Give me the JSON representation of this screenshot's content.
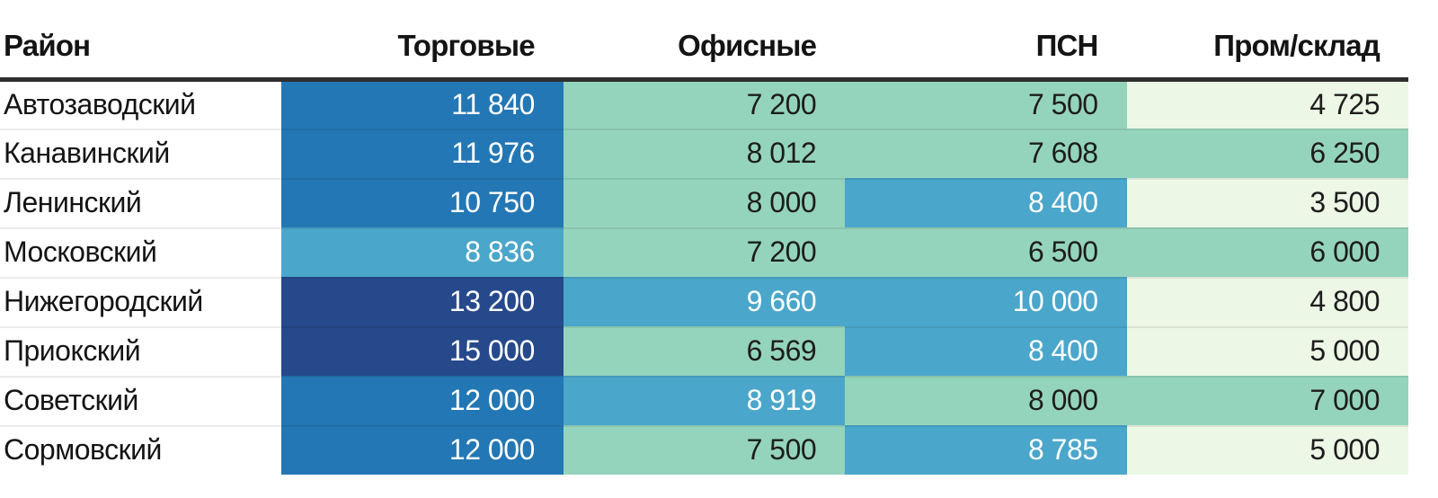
{
  "chart_data": {
    "type": "heatmap",
    "title": "",
    "rule_color": "#2e2e2e",
    "columns": [
      "Район",
      "Торговые",
      "Офисные",
      "ПСН",
      "Пром/склад"
    ],
    "palette": [
      {
        "bg": "#EDF7E6",
        "text": "#1D1D1D"
      },
      {
        "bg": "#95D4BC",
        "text": "#1D1D1D"
      },
      {
        "bg": "#4AA6CA",
        "text": "#FFFFFF"
      },
      {
        "bg": "#2377B4",
        "text": "#FFFFFF"
      },
      {
        "bg": "#26498C",
        "text": "#FFFFFF"
      }
    ],
    "rows": [
      {
        "district": "Автозаводский",
        "values": [
          11840,
          7200,
          7500,
          4725
        ],
        "values_display": [
          "11 840",
          "7 200",
          "7 500",
          "4 725"
        ],
        "levels": [
          3,
          1,
          1,
          0
        ]
      },
      {
        "district": "Канавинский",
        "values": [
          11976,
          8012,
          7608,
          6250
        ],
        "values_display": [
          "11 976",
          "8 012",
          "7 608",
          "6 250"
        ],
        "levels": [
          3,
          1,
          1,
          1
        ]
      },
      {
        "district": "Ленинский",
        "values": [
          10750,
          8000,
          8400,
          3500
        ],
        "values_display": [
          "10 750",
          "8 000",
          "8 400",
          "3 500"
        ],
        "levels": [
          3,
          1,
          2,
          0
        ]
      },
      {
        "district": "Московский",
        "values": [
          8836,
          7200,
          6500,
          6000
        ],
        "values_display": [
          "8 836",
          "7 200",
          "6 500",
          "6 000"
        ],
        "levels": [
          2,
          1,
          1,
          1
        ]
      },
      {
        "district": "Нижегородский",
        "values": [
          13200,
          9660,
          10000,
          4800
        ],
        "values_display": [
          "13 200",
          "9 660",
          "10 000",
          "4 800"
        ],
        "levels": [
          4,
          2,
          2,
          0
        ]
      },
      {
        "district": "Приокский",
        "values": [
          15000,
          6569,
          8400,
          5000
        ],
        "values_display": [
          "15 000",
          "6 569",
          "8 400",
          "5 000"
        ],
        "levels": [
          4,
          1,
          2,
          0
        ]
      },
      {
        "district": "Советский",
        "values": [
          12000,
          8919,
          8000,
          7000
        ],
        "values_display": [
          "12 000",
          "8 919",
          "8 000",
          "7 000"
        ],
        "levels": [
          3,
          2,
          1,
          1
        ]
      },
      {
        "district": "Сормовский",
        "values": [
          12000,
          7500,
          8785,
          5000
        ],
        "values_display": [
          "12 000",
          "7 500",
          "8 785",
          "5 000"
        ],
        "levels": [
          3,
          1,
          2,
          0
        ]
      }
    ]
  }
}
